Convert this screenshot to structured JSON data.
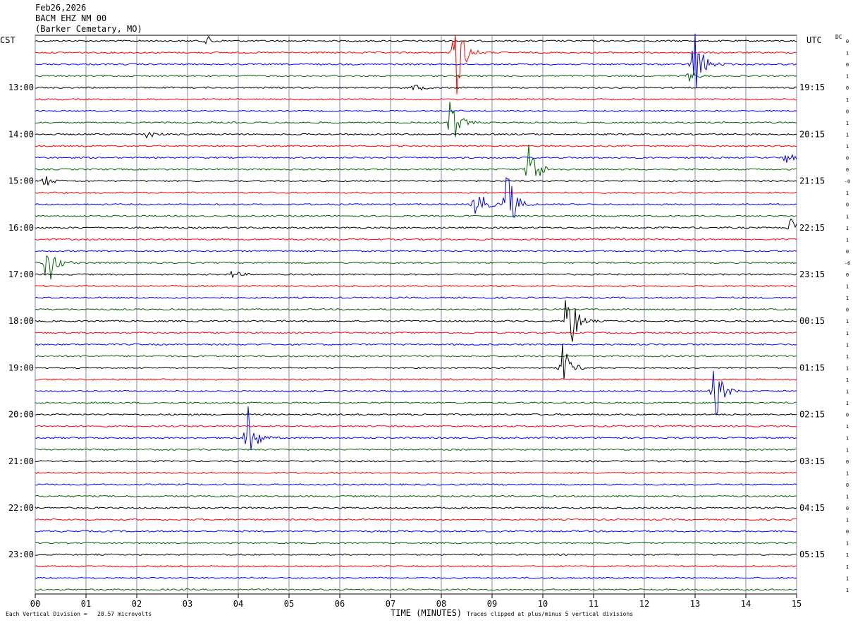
{
  "header": {
    "date": "Feb26,2026",
    "station": "BACM EHZ NM 00",
    "location": "(Barker Cemetary, MO)"
  },
  "left_axis_title": "CST",
  "right_axis_title": "UTC",
  "dc_title": "DC",
  "footer": {
    "vertical_division": "Each Vertical Division =   28.57 microvolts",
    "xlabel": "TIME (MINUTES)",
    "clip_note": "Traces clipped at plus/minus 5 vertical divisions"
  },
  "colors": {
    "trace_cycle": [
      "#000000",
      "#ff0000",
      "#0000ff",
      "#006400"
    ],
    "grid": "#8a8aa8"
  },
  "chart_data": {
    "type": "line",
    "title": "",
    "xlabel": "TIME (MINUTES)",
    "xlim": [
      0,
      15
    ],
    "x_ticks": [
      "00",
      "01",
      "02",
      "03",
      "04",
      "05",
      "06",
      "07",
      "08",
      "09",
      "10",
      "11",
      "12",
      "13",
      "14",
      "15"
    ],
    "left_hour_labels": [
      "13:00",
      "14:00",
      "15:00",
      "16:00",
      "17:00",
      "18:00",
      "19:00",
      "20:00",
      "21:00",
      "22:00",
      "23:00"
    ],
    "right_hour_labels": [
      "19:15",
      "20:15",
      "21:15",
      "22:15",
      "23:15",
      "00:15",
      "01:15",
      "02:15",
      "03:15",
      "04:15",
      "05:15"
    ],
    "trace_count": 48,
    "dc_offsets": [
      "0",
      "1",
      "0",
      "1",
      "0",
      "1",
      "0",
      "1",
      "1",
      "1",
      "0",
      "0",
      "-0",
      "1",
      "0",
      "1",
      "1",
      "1",
      "0",
      "-6",
      "0",
      "1",
      "1",
      "0",
      "1",
      "1",
      "1",
      "1",
      "1",
      "1",
      "1",
      "1",
      "0",
      "1",
      "1",
      "1",
      "0",
      "1",
      "0",
      "1",
      "0",
      "1",
      "0",
      "1",
      "1",
      "1",
      "1",
      "1"
    ],
    "events": [
      {
        "trace": 0,
        "minute": 3.4,
        "amp": 6
      },
      {
        "trace": 1,
        "minute": 8.3,
        "amp": 70
      },
      {
        "trace": 2,
        "minute": 13.0,
        "amp": 55
      },
      {
        "trace": 3,
        "minute": 12.9,
        "amp": 8
      },
      {
        "trace": 4,
        "minute": 7.5,
        "amp": 6
      },
      {
        "trace": 7,
        "minute": 8.2,
        "amp": 40
      },
      {
        "trace": 8,
        "minute": 2.2,
        "amp": 7
      },
      {
        "trace": 10,
        "minute": 14.8,
        "amp": 8
      },
      {
        "trace": 11,
        "minute": 9.75,
        "amp": 50
      },
      {
        "trace": 12,
        "minute": 0.2,
        "amp": 8
      },
      {
        "trace": 14,
        "minute": 8.7,
        "amp": 30
      },
      {
        "trace": 14,
        "minute": 9.3,
        "amp": 60
      },
      {
        "trace": 16,
        "minute": 14.9,
        "amp": 14
      },
      {
        "trace": 19,
        "minute": 0.25,
        "amp": 38
      },
      {
        "trace": 20,
        "minute": 3.9,
        "amp": 5
      },
      {
        "trace": 24,
        "minute": 10.5,
        "amp": 65
      },
      {
        "trace": 28,
        "minute": 10.4,
        "amp": 35
      },
      {
        "trace": 30,
        "minute": 13.4,
        "amp": 42
      },
      {
        "trace": 34,
        "minute": 4.2,
        "amp": 45
      }
    ]
  }
}
